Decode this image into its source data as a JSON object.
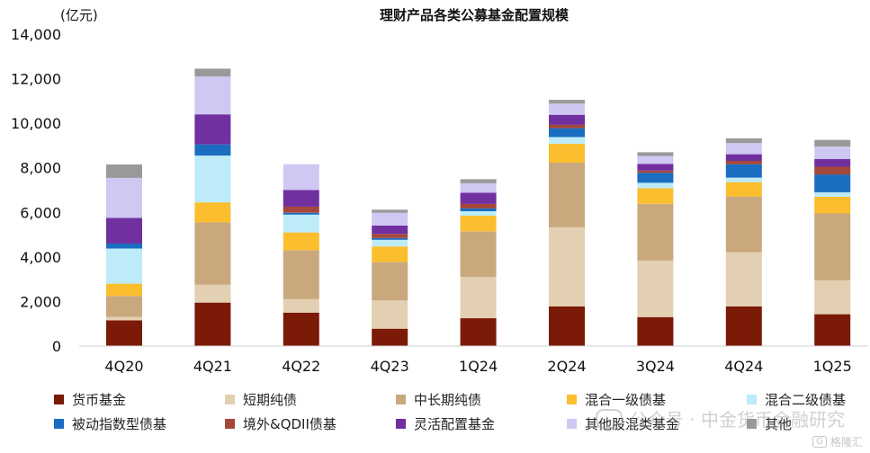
{
  "chart_data": {
    "type": "bar",
    "stacked": true,
    "title": "理财产品各类公募基金配置规模",
    "unit_label": "(亿元)",
    "ylim": [
      0,
      14000
    ],
    "yticks": [
      "0",
      "2,000",
      "4,000",
      "6,000",
      "8,000",
      "10,000",
      "12,000",
      "14,000"
    ],
    "ytick_values": [
      0,
      2000,
      4000,
      6000,
      8000,
      10000,
      12000,
      14000
    ],
    "categories": [
      "4Q20",
      "4Q21",
      "4Q22",
      "4Q23",
      "1Q24",
      "2Q24",
      "3Q24",
      "4Q24",
      "1Q25"
    ],
    "legend_position": "bottom",
    "series": [
      {
        "name": "货币基金",
        "color": "#7B1A06",
        "values": [
          1150,
          1950,
          1500,
          780,
          1250,
          1780,
          1300,
          1780,
          1430
        ]
      },
      {
        "name": "短期纯债",
        "color": "#E3CFB2",
        "values": [
          150,
          800,
          600,
          1270,
          1850,
          3550,
          2540,
          2430,
          1520
        ]
      },
      {
        "name": "中长期纯债",
        "color": "#C9A87E",
        "values": [
          950,
          2800,
          2200,
          1720,
          2050,
          2900,
          2540,
          2500,
          3000
        ]
      },
      {
        "name": "混合一级债基",
        "color": "#FBBE2E",
        "values": [
          550,
          900,
          800,
          700,
          700,
          850,
          700,
          650,
          750
        ]
      },
      {
        "name": "混合二级债基",
        "color": "#BDEBF8",
        "values": [
          1580,
          2100,
          800,
          300,
          200,
          300,
          250,
          200,
          200
        ]
      },
      {
        "name": "被动指数型债基",
        "color": "#1A6DC0",
        "values": [
          220,
          500,
          80,
          80,
          130,
          400,
          450,
          600,
          800
        ]
      },
      {
        "name": "境外&QDII债基",
        "color": "#A4473A",
        "values": [
          0,
          0,
          280,
          180,
          200,
          150,
          100,
          150,
          350
        ]
      },
      {
        "name": "灵活配置基金",
        "color": "#7130A0",
        "values": [
          1150,
          1350,
          750,
          380,
          500,
          450,
          300,
          300,
          350
        ]
      },
      {
        "name": "其他股混类基金",
        "color": "#CFC8F3",
        "values": [
          1800,
          1700,
          1150,
          570,
          430,
          500,
          350,
          500,
          550
        ]
      },
      {
        "name": "其他",
        "color": "#999999",
        "values": [
          600,
          350,
          0,
          140,
          180,
          170,
          170,
          210,
          300
        ]
      }
    ]
  },
  "watermark": {
    "text": "公众号 · 中金货币金融研究",
    "badge": "G",
    "brand": "格隆汇"
  }
}
